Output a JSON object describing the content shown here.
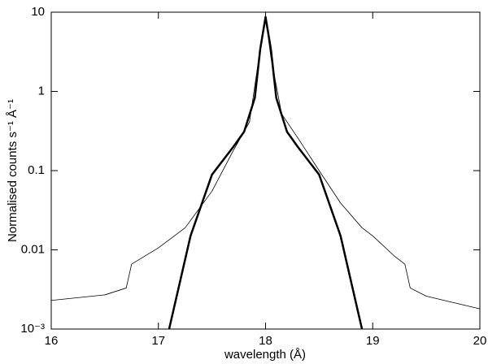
{
  "chart_data": {
    "type": "line",
    "xlabel": "wavelength (Å)",
    "ylabel": "Normalised counts s⁻¹ Å⁻¹",
    "xlim": [
      16,
      20
    ],
    "xticks": [
      16,
      17,
      18,
      19,
      20
    ],
    "ylim": [
      0.001,
      10
    ],
    "yscale": "log",
    "yticks": [
      {
        "value": 0.001,
        "label": "10⁻³"
      },
      0.01,
      0.1,
      1,
      10
    ],
    "series": [
      {
        "color": "#000000",
        "width": 0.8,
        "x": [
          16,
          16.5,
          16.7,
          16.75,
          17.0,
          17.25,
          17.5,
          17.7,
          17.85,
          17.95,
          18,
          18.05,
          18.15,
          18.3,
          18.5,
          18.7,
          18.9,
          19.0,
          19.2,
          19.3,
          19.35,
          19.5,
          20
        ],
        "values": [
          0.0023,
          0.0027,
          0.0033,
          0.0066,
          0.0106,
          0.019,
          0.055,
          0.18,
          0.41,
          3.4,
          8.7,
          2.7,
          0.52,
          0.26,
          0.1,
          0.039,
          0.019,
          0.015,
          0.0084,
          0.0066,
          0.0033,
          0.0026,
          0.0018
        ]
      },
      {
        "color": "#000000",
        "width": 2.5,
        "x": [
          17.1,
          17.3,
          17.5,
          17.7,
          17.8,
          17.9,
          17.95,
          18,
          18.05,
          18.1,
          18.2,
          18.3,
          18.5,
          18.7,
          18.9
        ],
        "values": [
          0.001,
          0.015,
          0.089,
          0.2,
          0.31,
          0.83,
          3.4,
          8.7,
          3.4,
          0.83,
          0.31,
          0.2,
          0.089,
          0.015,
          0.001
        ]
      }
    ]
  }
}
